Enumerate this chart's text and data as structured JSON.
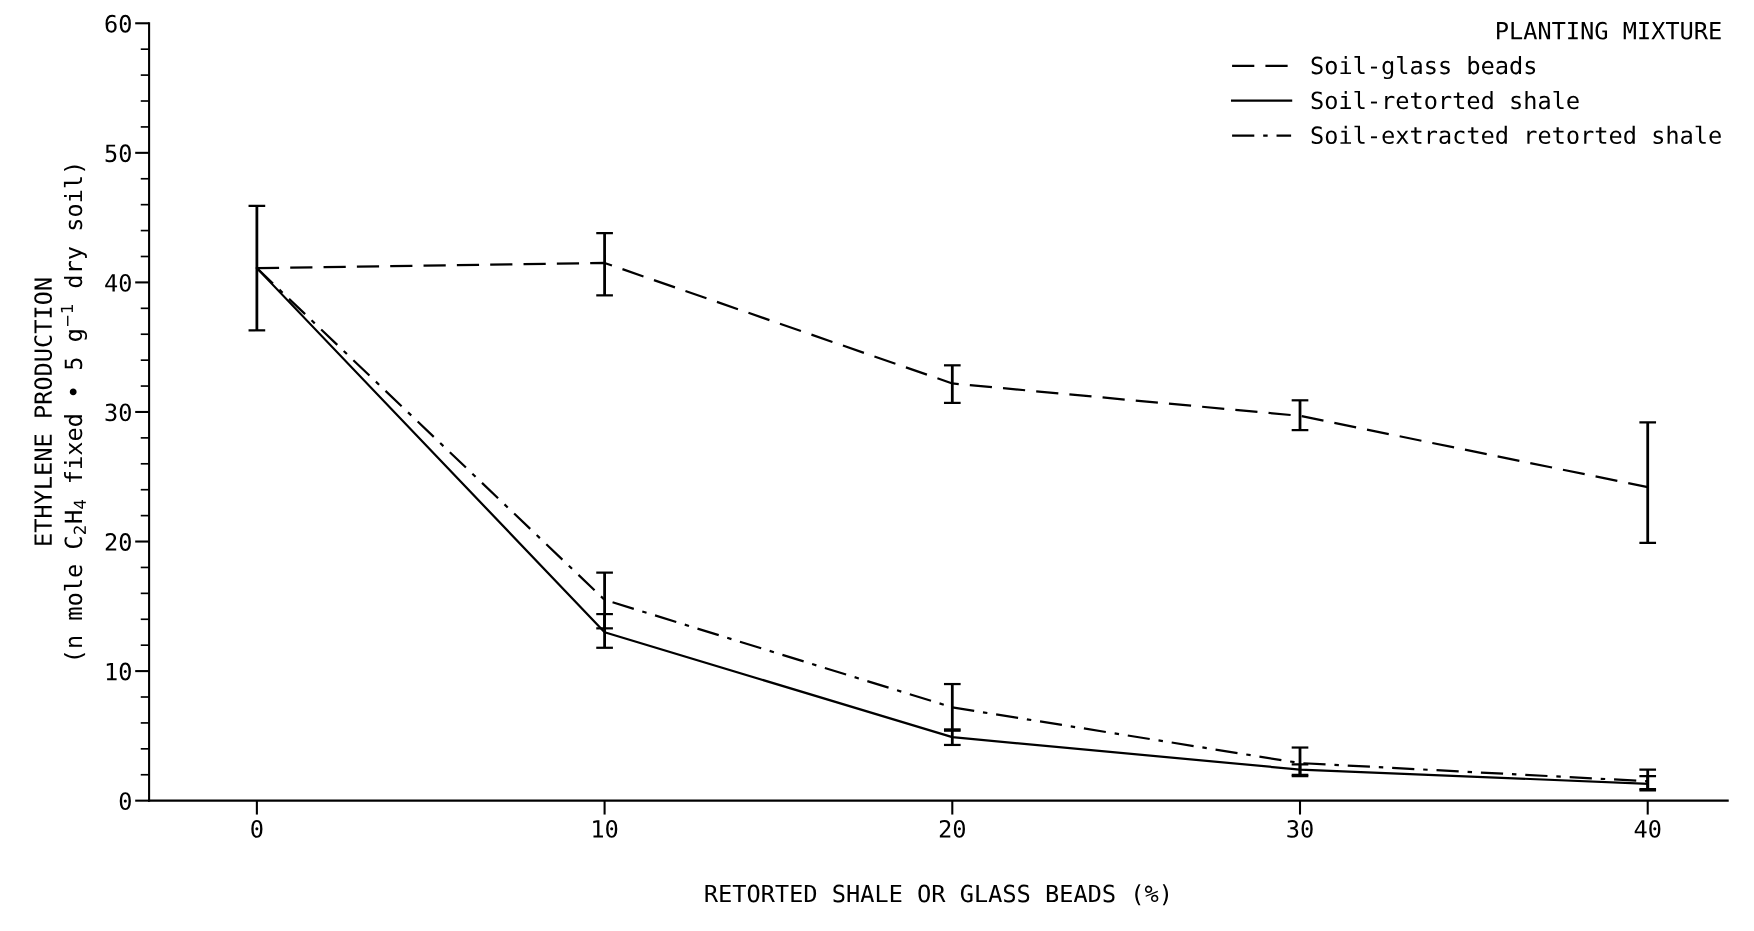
{
  "chart_data": {
    "type": "line",
    "xlabel": "RETORTED SHALE OR GLASS BEADS (%)",
    "ylabel": "ETHYLENE PRODUCTION\n(n mole C$_{2}$H$_{4}$ fixed • 5 g$^{−1}$ dry soil)",
    "legend_title": "PLANTING MIXTURE",
    "x": [
      0,
      10,
      20,
      30,
      40
    ],
    "series": [
      {
        "name": "Soil-glass beads",
        "color": "#000000",
        "line_style": "dashed",
        "values": [
          41.1,
          41.5,
          32.2,
          29.7,
          24.2
        ],
        "errors": [
          [
            36.3,
            45.9
          ],
          [
            39.0,
            43.8
          ],
          [
            30.7,
            33.6
          ],
          [
            28.6,
            30.9
          ],
          [
            19.9,
            29.2
          ]
        ]
      },
      {
        "name": "Soil-retorted shale",
        "color": "#000000",
        "line_style": "solid",
        "values": [
          41.1,
          13.0,
          4.9,
          2.4,
          1.3
        ],
        "errors": [
          null,
          [
            11.8,
            14.4
          ],
          [
            4.3,
            5.5
          ],
          [
            2.0,
            2.8
          ],
          [
            0.8,
            1.9
          ]
        ]
      },
      {
        "name": "Soil-extracted retorted shale",
        "color": "#000000",
        "line_style": "dashdot",
        "values": [
          41.1,
          15.5,
          7.2,
          2.9,
          1.5
        ],
        "errors": [
          null,
          [
            13.3,
            17.6
          ],
          [
            5.4,
            9.0
          ],
          [
            1.9,
            4.1
          ],
          [
            0.9,
            2.4
          ]
        ]
      }
    ],
    "xlim": [
      -3.1,
      42.3
    ],
    "xticks": [
      0,
      10,
      20,
      30,
      40
    ],
    "ylim": [
      0,
      60
    ],
    "yticks": [
      0,
      10,
      20,
      30,
      40,
      50,
      60
    ],
    "grid": false,
    "legend": "top right",
    "marker": "none"
  }
}
